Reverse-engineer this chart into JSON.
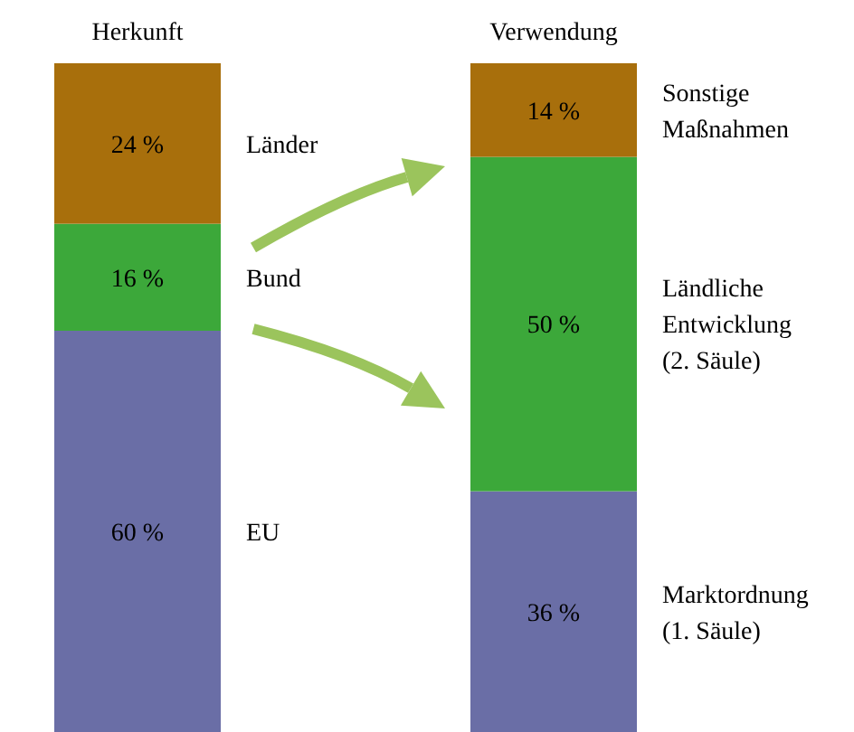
{
  "chart_data": {
    "type": "bar",
    "stacked": true,
    "legend": false,
    "categories": [
      "Herkunft",
      "Verwendung"
    ],
    "series": [
      {
        "name": "EU",
        "color": "#6a6ea6",
        "values": [
          60,
          null
        ],
        "value_labels": [
          "60 %",
          null
        ]
      },
      {
        "name": "Bund",
        "color": "#3ca83a",
        "values": [
          16,
          null
        ],
        "value_labels": [
          "16 %",
          null
        ]
      },
      {
        "name": "Länder",
        "color": "#a86f0c",
        "values": [
          24,
          null
        ],
        "value_labels": [
          "24 %",
          null
        ]
      },
      {
        "name": "Marktordnung\n(1. Säule)",
        "color": "#6a6ea6",
        "values": [
          null,
          36
        ],
        "value_labels": [
          null,
          "36 %"
        ]
      },
      {
        "name": "Ländliche\nEntwicklung\n(2. Säule)",
        "color": "#3ca83a",
        "values": [
          null,
          50
        ],
        "value_labels": [
          null,
          "50 %"
        ]
      },
      {
        "name": "Sonstige\nMaßnahmen",
        "color": "#a86f0c",
        "values": [
          null,
          14
        ],
        "value_labels": [
          null,
          "14 %"
        ]
      }
    ]
  }
}
